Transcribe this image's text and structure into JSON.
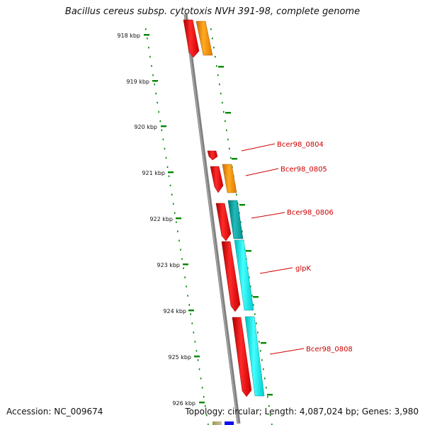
{
  "title": "Bacillus cereus subsp. cytotoxis NVH 391-98, complete genome",
  "footer": {
    "accession": "Accession: NC_009674",
    "summary": "Topology: circular; Length: 4,087,024 bp; Genes: 3,980"
  },
  "kbp_ticks": [
    "918 kbp",
    "919 kbp",
    "920 kbp",
    "921 kbp",
    "922 kbp",
    "923 kbp",
    "924 kbp",
    "925 kbp",
    "926 kbp"
  ],
  "gene_labels": [
    "Bcer98_0804",
    "Bcer98_0805",
    "Bcer98_0806",
    "glpK",
    "Bcer98_0808"
  ],
  "colors": {
    "backbone": "#808080",
    "forward_strand_gene": "#ff0000",
    "reverse_gene_orange": "#ff9900",
    "reverse_gene_teal": "#00aaaa",
    "reverse_gene_cyan": "#00eeee",
    "tick_marks": "#008800",
    "label_lines": "#cc0000"
  }
}
